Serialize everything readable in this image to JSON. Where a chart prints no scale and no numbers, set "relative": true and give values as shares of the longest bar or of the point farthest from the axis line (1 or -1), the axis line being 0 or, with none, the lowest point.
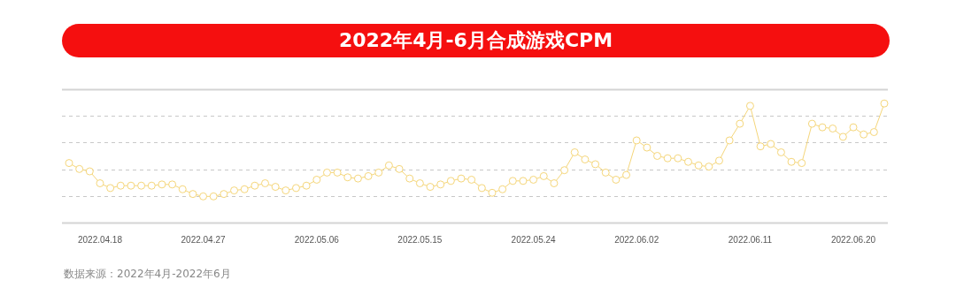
{
  "chart_data": {
    "type": "line",
    "title": "2022年4月-6月合成游戏CPM",
    "relative": true,
    "grid": "y",
    "marker": "circle",
    "line_style": "solid",
    "legend": false,
    "categories": [
      null,
      null,
      null,
      "2022.04.18",
      null,
      null,
      null,
      null,
      null,
      null,
      null,
      null,
      null,
      "2022.04.27",
      null,
      null,
      null,
      null,
      null,
      null,
      null,
      null,
      null,
      null,
      "2022.05.06",
      null,
      null,
      null,
      null,
      null,
      null,
      null,
      null,
      null,
      "2022.05.15",
      null,
      null,
      null,
      null,
      null,
      null,
      null,
      null,
      null,
      null,
      "2022.05.24",
      null,
      null,
      null,
      null,
      null,
      null,
      null,
      null,
      null,
      "2022.06.02",
      null,
      null,
      null,
      null,
      null,
      null,
      null,
      null,
      null,
      null,
      "2022.06.11",
      null,
      null,
      null,
      null,
      null,
      null,
      null,
      null,
      null,
      "2022.06.20",
      null,
      null,
      null
    ],
    "series": [
      {
        "color": "#f5d67a",
        "values": [
          0.5,
          0.45,
          0.43,
          0.33,
          0.29,
          0.31,
          0.31,
          0.31,
          0.31,
          0.32,
          0.32,
          0.28,
          0.24,
          0.22,
          0.22,
          0.24,
          0.27,
          0.28,
          0.31,
          0.33,
          0.3,
          0.27,
          0.29,
          0.31,
          0.36,
          0.42,
          0.42,
          0.38,
          0.37,
          0.39,
          0.42,
          0.48,
          0.45,
          0.37,
          0.33,
          0.3,
          0.32,
          0.35,
          0.37,
          0.36,
          0.29,
          0.25,
          0.28,
          0.35,
          0.35,
          0.36,
          0.39,
          0.33,
          0.44,
          0.59,
          0.53,
          0.49,
          0.42,
          0.36,
          0.4,
          0.69,
          0.63,
          0.56,
          0.54,
          0.54,
          0.51,
          0.48,
          0.47,
          0.52,
          0.69,
          0.83,
          0.98,
          0.64,
          0.66,
          0.59,
          0.51,
          0.5,
          0.83,
          0.8,
          0.79,
          0.72,
          0.8,
          0.74,
          0.76,
          1
        ]
      }
    ],
    "annotations": [
      "数据来源：2022年4月-2022年6月"
    ]
  }
}
